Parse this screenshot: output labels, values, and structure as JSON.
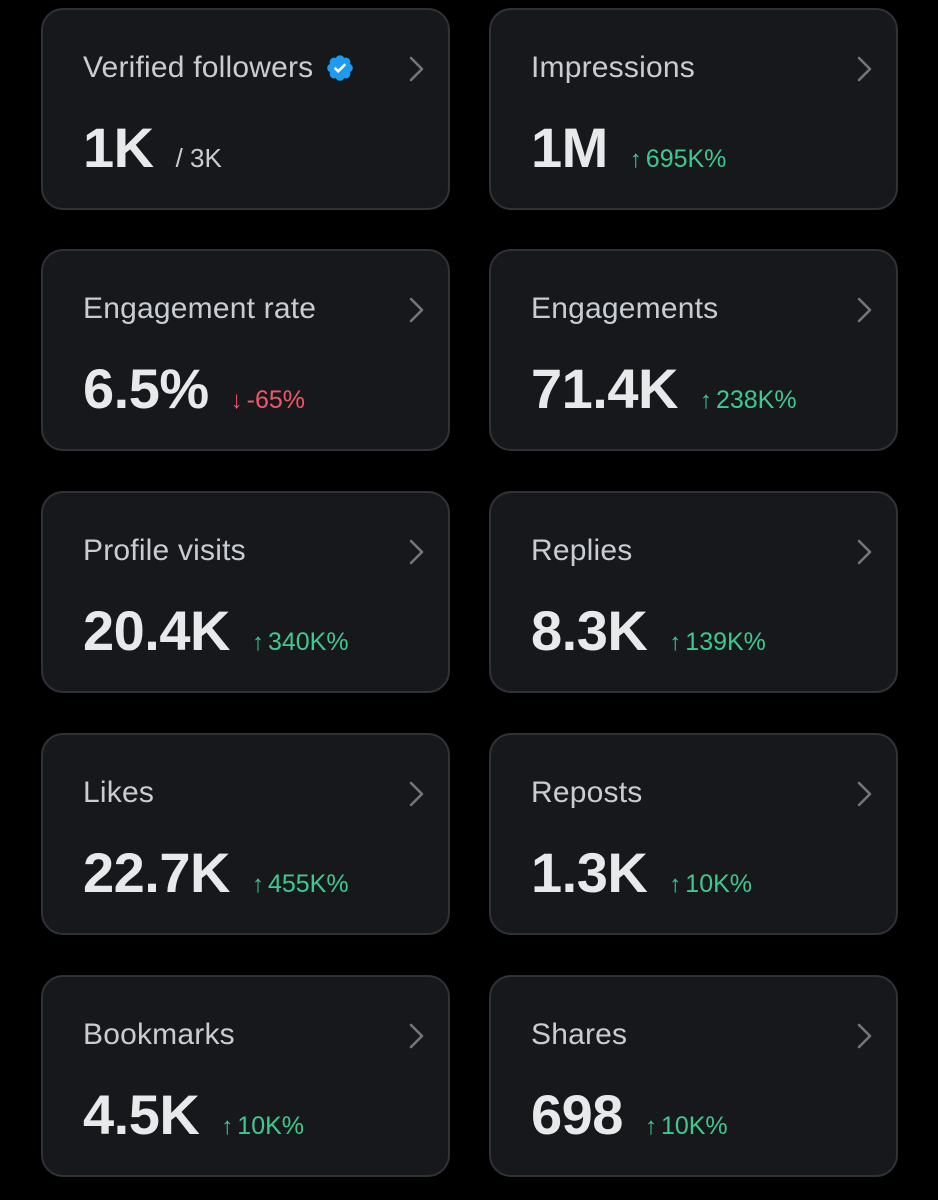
{
  "colors": {
    "background": "#000000",
    "card": "#16181c",
    "card_border": "#2f3336",
    "positive": "#3ec98e",
    "negative": "#f0586a",
    "verified_badge": "#1d9bf0"
  },
  "cards": [
    {
      "title": "Verified followers",
      "value": "1K",
      "sub": "/ 3K",
      "icon": "verified-badge-icon"
    },
    {
      "title": "Impressions",
      "value": "1M",
      "arrow": "↑",
      "change": "695K%",
      "trend": "up"
    },
    {
      "title": "Engagement rate",
      "value": "6.5%",
      "arrow": "↓",
      "change": "-65%",
      "trend": "down"
    },
    {
      "title": "Engagements",
      "value": "71.4K",
      "arrow": "↑",
      "change": "238K%",
      "trend": "up"
    },
    {
      "title": "Profile visits",
      "value": "20.4K",
      "arrow": "↑",
      "change": "340K%",
      "trend": "up"
    },
    {
      "title": "Replies",
      "value": "8.3K",
      "arrow": "↑",
      "change": "139K%",
      "trend": "up"
    },
    {
      "title": "Likes",
      "value": "22.7K",
      "arrow": "↑",
      "change": "455K%",
      "trend": "up"
    },
    {
      "title": "Reposts",
      "value": "1.3K",
      "arrow": "↑",
      "change": "10K%",
      "trend": "up"
    },
    {
      "title": "Bookmarks",
      "value": "4.5K",
      "arrow": "↑",
      "change": "10K%",
      "trend": "up"
    },
    {
      "title": "Shares",
      "value": "698",
      "arrow": "↑",
      "change": "10K%",
      "trend": "up"
    }
  ]
}
